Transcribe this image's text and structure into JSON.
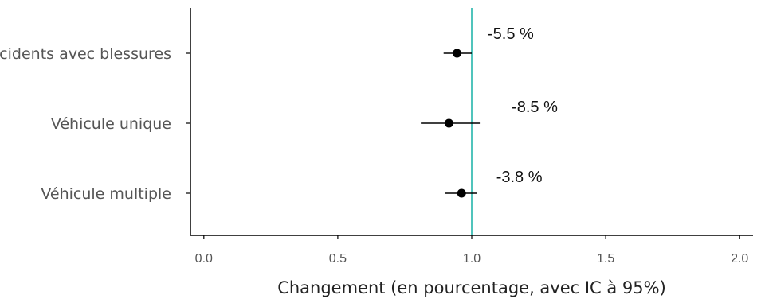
{
  "chart_data": {
    "type": "scatter",
    "subtype": "forest-plot",
    "title": "",
    "xlabel": "Changement (en pourcentage, avec IC à 95%)",
    "ylabel": "",
    "xlim": [
      -0.05,
      2.05
    ],
    "xticks": [
      0.0,
      0.5,
      1.0,
      1.5,
      2.0
    ],
    "xtick_labels": [
      "0.0",
      "0.5",
      "1.0",
      "1.5",
      "2.0"
    ],
    "reference_line": {
      "x": 1.0,
      "color": "#3dbdb4"
    },
    "grid": false,
    "categories": [
      "Accidents avec blessures",
      "Véhicule unique",
      "Véhicule multiple"
    ],
    "points": [
      {
        "category": "Accidents avec blessures",
        "estimate": 0.945,
        "ci_low": 0.895,
        "ci_high": 1.0,
        "label": "-5.5 %"
      },
      {
        "category": "Véhicule unique",
        "estimate": 0.915,
        "ci_low": 0.81,
        "ci_high": 1.03,
        "label": "-8.5 %"
      },
      {
        "category": "Véhicule multiple",
        "estimate": 0.962,
        "ci_low": 0.9,
        "ci_high": 1.02,
        "label": "-3.8 %"
      }
    ],
    "colors": {
      "points": "#000000",
      "axis": "#000000"
    }
  }
}
